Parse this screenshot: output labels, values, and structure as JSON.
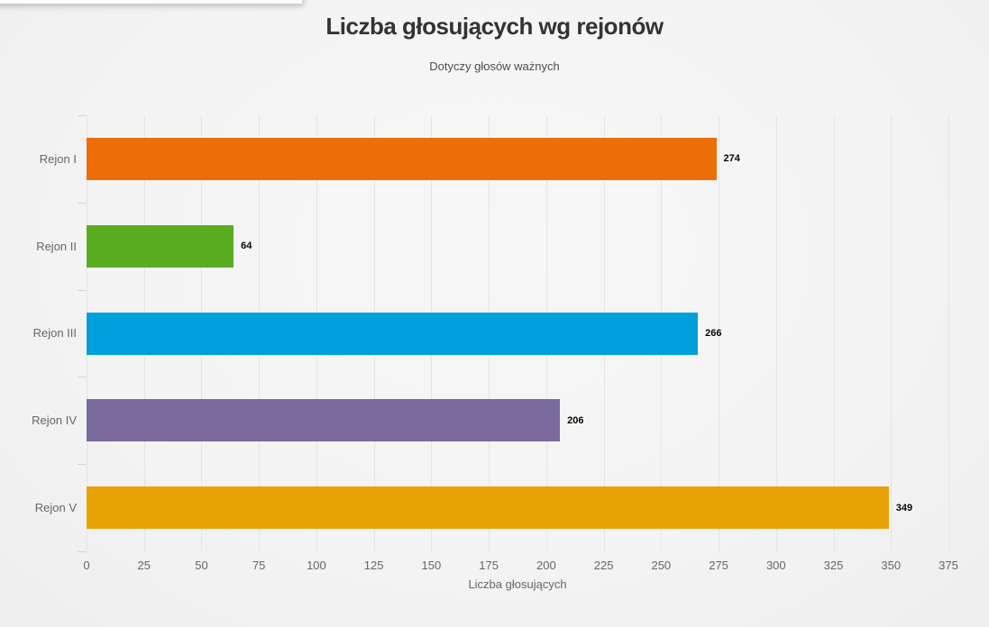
{
  "chart_data": {
    "type": "bar",
    "orientation": "horizontal",
    "title": "Liczba głosujących wg rejonów",
    "subtitle": "Dotyczy głosów ważnych",
    "categories": [
      "Rejon I",
      "Rejon II",
      "Rejon III",
      "Rejon IV",
      "Rejon V"
    ],
    "values": [
      274,
      64,
      266,
      206,
      349
    ],
    "data_labels": [
      "274",
      "64",
      "266",
      "206",
      "349"
    ],
    "bar_colors": [
      "#ec6e08",
      "#5aad21",
      "#00a0dc",
      "#7a699c",
      "#e9a306"
    ],
    "xlabel": "Liczba głosujących",
    "xlim": [
      0,
      375
    ],
    "x_ticks": [
      0,
      25,
      50,
      75,
      100,
      125,
      150,
      175,
      200,
      225,
      250,
      275,
      300,
      325,
      350,
      375
    ],
    "grid": true,
    "legend": "none"
  },
  "style_colors": {
    "gridline": "#e5e5e5",
    "axis_line": "#ccd6eb",
    "tick_label": "#666666",
    "title": "#333333",
    "subtitle": "#4d4d4d",
    "value_label": "#000000",
    "background": "#f4f4f4"
  }
}
